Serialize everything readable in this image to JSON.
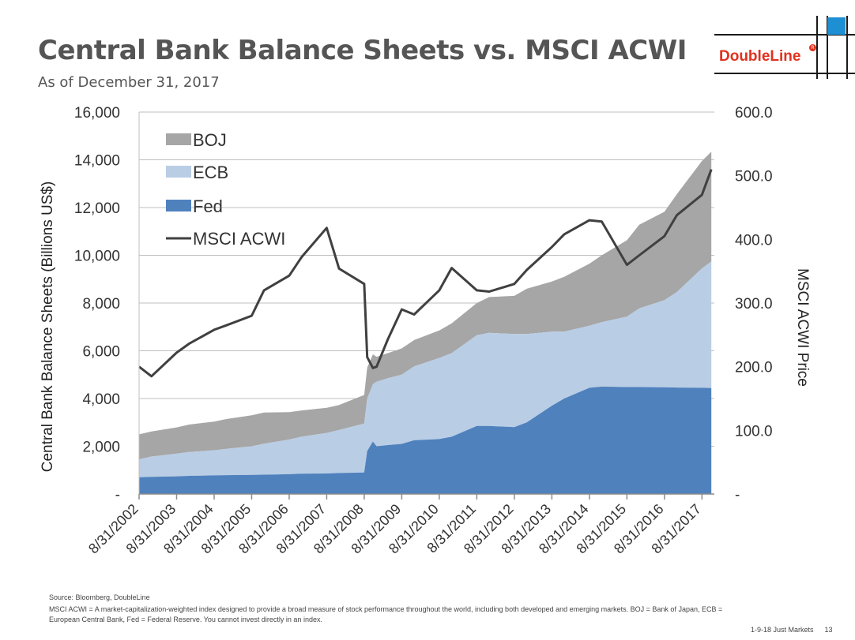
{
  "header": {
    "title": "Central Bank Balance Sheets vs. MSCI ACWI",
    "subtitle": "As of December 31, 2017",
    "logo_text": "DoubleLine",
    "logo_mark": "R"
  },
  "footer": {
    "source": "Source:  Bloomberg, DoubleLine",
    "note": "MSCI ACWI = A market-capitalization-weighted index designed to provide a broad measure of stock performance throughout the world, including both developed and emerging markets. BOJ = Bank of Japan, ECB = European Central Bank, Fed = Federal Reserve. You cannot invest directly in an index.",
    "tag": "1-9-18 Just Markets",
    "page_number": "13"
  },
  "colors": {
    "boj": "#a6a6a6",
    "ecb": "#b9cde5",
    "fed": "#4f81bd",
    "msci": "#404040",
    "logo_red": "#e2311d",
    "logo_blue": "#1f8fd3"
  },
  "chart_data": {
    "type": "area",
    "title": "",
    "ylabel": "Central Bank Balance Sheets (Billions US$)",
    "y2label": "MSCI ACWI Price",
    "ylim": [
      0,
      16000
    ],
    "y2lim": [
      0,
      600
    ],
    "yticks": [
      "-",
      "2,000",
      "4,000",
      "6,000",
      "8,000",
      "10,000",
      "12,000",
      "14,000",
      "16,000"
    ],
    "y2ticks": [
      "-",
      "100.0",
      "200.0",
      "300.0",
      "400.0",
      "500.0",
      "600.0"
    ],
    "x_categories": [
      "8/31/2002",
      "8/31/2003",
      "8/31/2004",
      "8/31/2005",
      "8/31/2006",
      "8/31/2007",
      "8/31/2008",
      "8/31/2009",
      "8/31/2010",
      "8/31/2011",
      "8/31/2012",
      "8/31/2013",
      "8/31/2014",
      "8/31/2015",
      "8/31/2016",
      "8/31/2017"
    ],
    "grid": true,
    "legend_position": "top-left",
    "stacking": "stacked",
    "x": [
      2002.67,
      2003.0,
      2003.67,
      2004.0,
      2004.67,
      2005.0,
      2005.67,
      2006.0,
      2006.67,
      2007.0,
      2007.67,
      2008.0,
      2008.67,
      2008.75,
      2008.9,
      2009.0,
      2009.3,
      2009.67,
      2010.0,
      2010.67,
      2011.0,
      2011.67,
      2012.0,
      2012.67,
      2013.0,
      2013.67,
      2014.0,
      2014.67,
      2015.0,
      2015.67,
      2016.0,
      2016.67,
      2017.0,
      2017.67,
      2017.92
    ],
    "series": [
      {
        "name": "Fed",
        "values": [
          700,
          720,
          740,
          760,
          780,
          790,
          800,
          810,
          830,
          850,
          860,
          880,
          900,
          1800,
          2200,
          2000,
          2050,
          2100,
          2250,
          2300,
          2400,
          2850,
          2850,
          2800,
          3000,
          3700,
          4000,
          4450,
          4500,
          4480,
          4480,
          4470,
          4460,
          4450,
          4440
        ]
      },
      {
        "name": "ECB",
        "values": [
          750,
          850,
          950,
          1000,
          1050,
          1100,
          1200,
          1300,
          1450,
          1550,
          1700,
          1800,
          2050,
          2200,
          2400,
          2700,
          2800,
          2900,
          3100,
          3400,
          3500,
          3800,
          3900,
          3900,
          3700,
          3100,
          2800,
          2600,
          2700,
          2950,
          3300,
          3650,
          4000,
          5000,
          5300
        ]
      },
      {
        "name": "BOJ",
        "values": [
          1050,
          1050,
          1100,
          1150,
          1200,
          1250,
          1300,
          1300,
          1150,
          1100,
          1050,
          1050,
          1200,
          1300,
          1250,
          1050,
          1050,
          1100,
          1100,
          1150,
          1250,
          1350,
          1500,
          1600,
          1900,
          2100,
          2300,
          2600,
          2800,
          3200,
          3500,
          3700,
          4100,
          4500,
          4600
        ]
      },
      {
        "name": "MSCI ACWI",
        "axis": "y2",
        "values": [
          200,
          185,
          222,
          236,
          258,
          265,
          280,
          320,
          343,
          372,
          418,
          354,
          330,
          215,
          198,
          200,
          243,
          290,
          282,
          320,
          355,
          320,
          318,
          330,
          352,
          388,
          408,
          430,
          428,
          360,
          375,
          405,
          438,
          470,
          510
        ]
      }
    ]
  }
}
